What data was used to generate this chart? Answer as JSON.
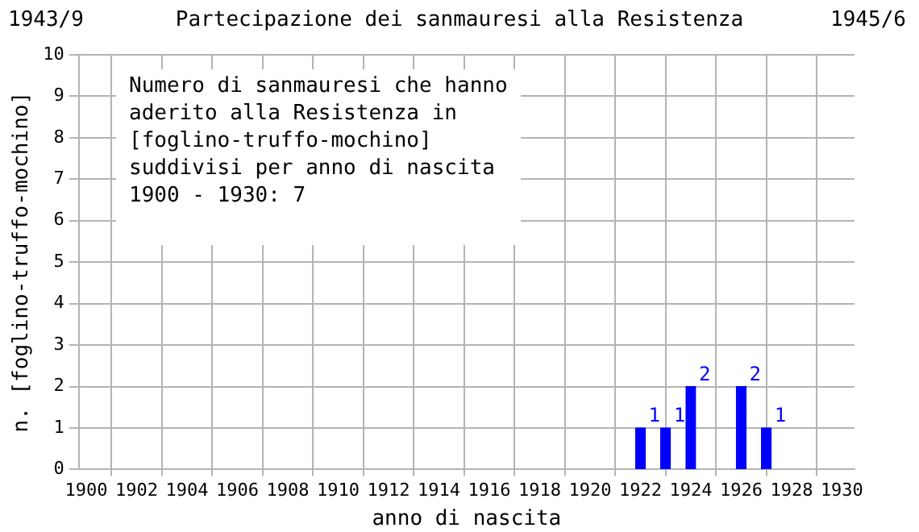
{
  "chart_data": {
    "type": "bar",
    "title": "Partecipazione dei sanmauresi alla Resistenza",
    "xlabel": "anno di nascita",
    "ylabel": "n. [foglino-truffo-mochino]",
    "annotations": [
      "1943/9",
      "1945/6",
      "Numero di sanmauresi che hanno\naderito alla Resistenza in\n[foglino-truffo-mochino]\nsuddivisi per anno di nascita\n1900 - 1930: 7"
    ],
    "x": [
      1900,
      1901,
      1902,
      1903,
      1904,
      1905,
      1906,
      1907,
      1908,
      1909,
      1910,
      1911,
      1912,
      1913,
      1914,
      1915,
      1916,
      1917,
      1918,
      1919,
      1920,
      1921,
      1922,
      1923,
      1924,
      1925,
      1926,
      1927,
      1928,
      1929,
      1930
    ],
    "values": [
      0,
      0,
      0,
      0,
      0,
      0,
      0,
      0,
      0,
      0,
      0,
      0,
      0,
      0,
      0,
      0,
      0,
      0,
      0,
      0,
      0,
      0,
      1,
      1,
      2,
      0,
      2,
      1,
      0,
      0,
      0
    ],
    "value_labels": [
      null,
      null,
      null,
      null,
      null,
      null,
      null,
      null,
      null,
      null,
      null,
      null,
      null,
      null,
      null,
      null,
      null,
      null,
      null,
      null,
      null,
      null,
      "1",
      "1",
      "2",
      null,
      "2",
      "1",
      null,
      null,
      null
    ],
    "color": "#0000ff",
    "xlim": [
      1899.7,
      1930.5
    ],
    "xticks": [
      1900,
      1902,
      1904,
      1906,
      1908,
      1910,
      1912,
      1914,
      1916,
      1918,
      1920,
      1922,
      1924,
      1926,
      1928,
      1930
    ],
    "ylim": [
      0,
      10
    ],
    "yticks": [
      0,
      1,
      2,
      3,
      4,
      5,
      6,
      7,
      8,
      9,
      10
    ],
    "grid": true,
    "legend": false
  }
}
